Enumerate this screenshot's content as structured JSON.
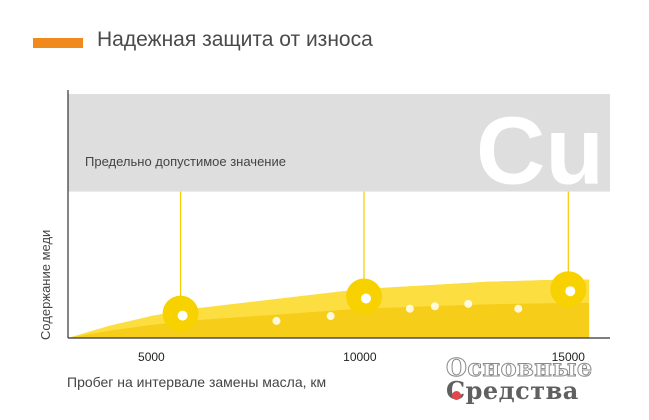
{
  "header": {
    "title": "Надежная защита от износа",
    "accent_color": "#f08a1c"
  },
  "chart_data": {
    "type": "area",
    "title": "Надежная защита от износа",
    "xlabel": "Пробег на интервале замены масла, км",
    "ylabel": "Содержание меди",
    "x_ticks": [
      5000,
      10000,
      15000
    ],
    "x_tick_labels": [
      "5000",
      "10000",
      "15000"
    ],
    "xlim": [
      3000,
      16000
    ],
    "ylim": [
      0,
      100
    ],
    "limit_band": {
      "label": "Предельно допустимое значение",
      "from": 60,
      "to": 100,
      "color": "#dedede"
    },
    "element_symbol": "Cu",
    "series": [
      {
        "x": [
          3000,
          4000,
          5000,
          6000,
          7000,
          8000,
          9000,
          10000,
          11000,
          12000,
          13000,
          14000,
          15000,
          15500
        ],
        "y": [
          0,
          5,
          9,
          12,
          14,
          16,
          18,
          20,
          21,
          22,
          23,
          23.5,
          24,
          24
        ],
        "color": "#f5c800"
      }
    ],
    "markers": [
      {
        "x": 5700,
        "y": 10
      },
      {
        "x": 10100,
        "y": 17
      },
      {
        "x": 15000,
        "y": 20
      }
    ]
  },
  "watermark": {
    "line1": "Основные",
    "line2": "Средства",
    "dot_color": "#e2474b"
  }
}
